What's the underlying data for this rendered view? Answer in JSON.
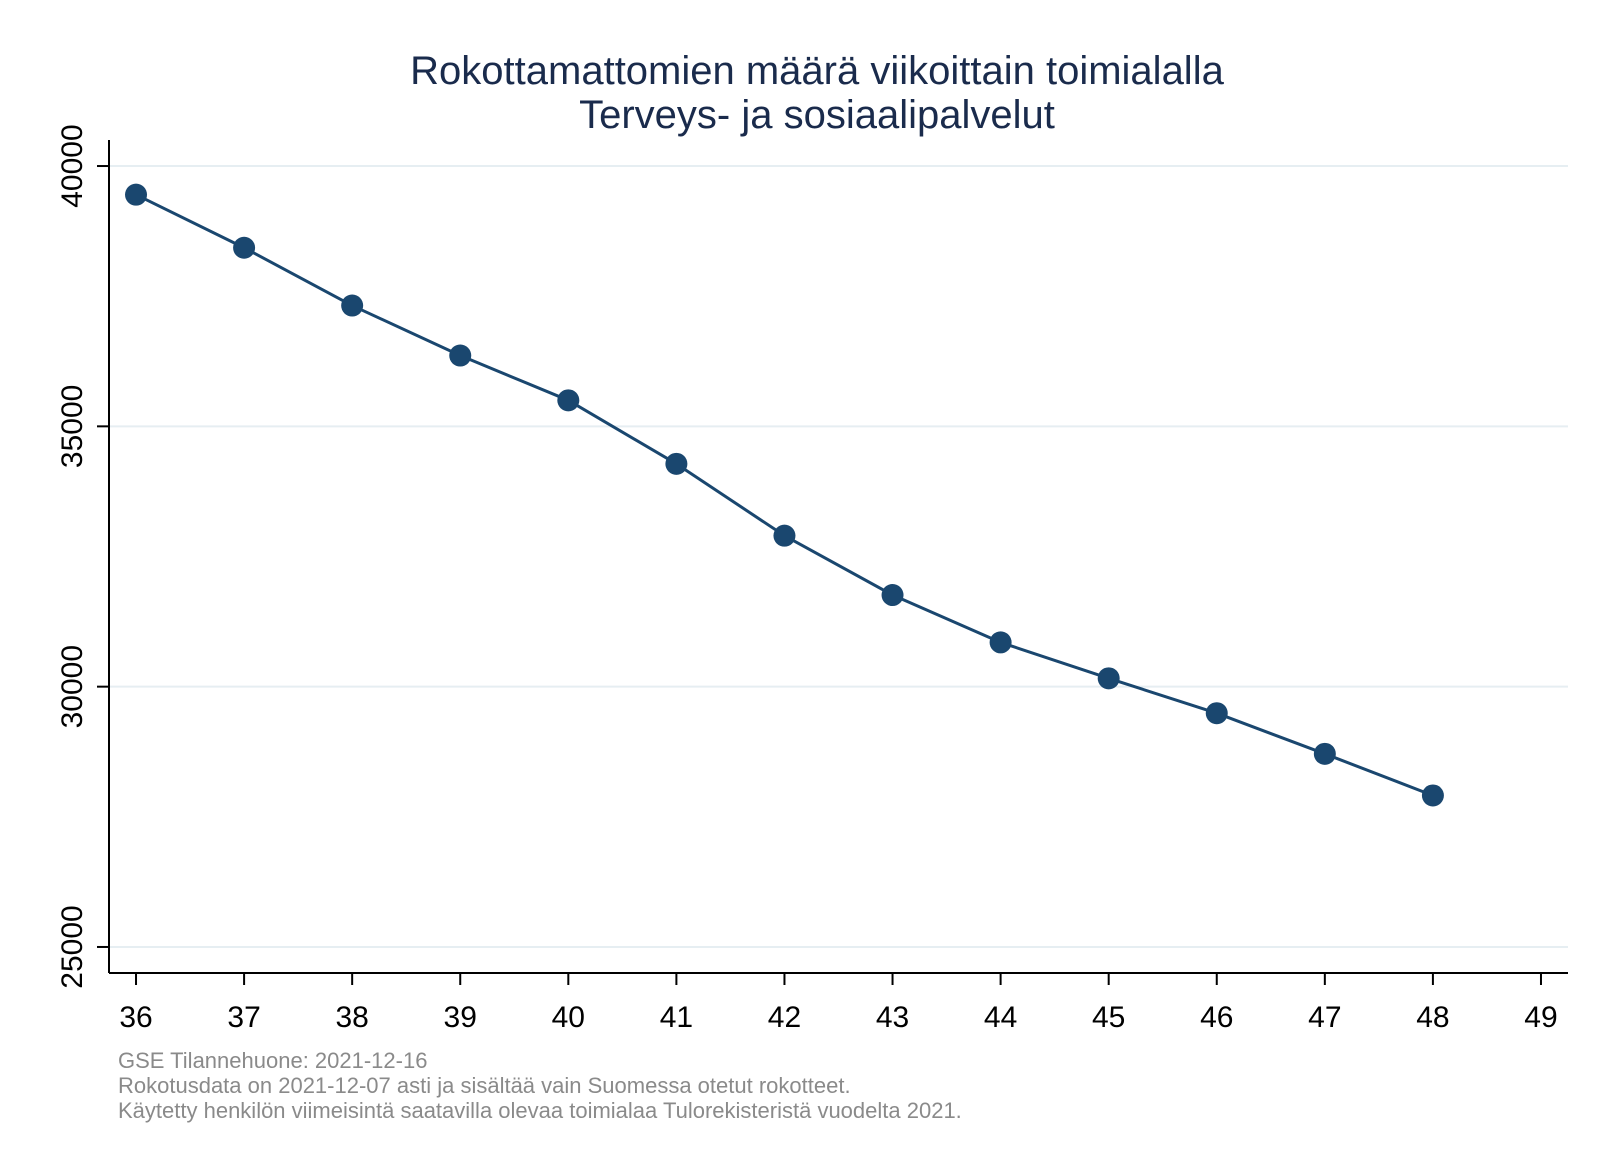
{
  "chart_data": {
    "type": "line",
    "title": [
      "Rokottamattomien määrä viikoittain toimialalla",
      "Terveys- ja sosiaalipalvelut"
    ],
    "xlabel": "",
    "ylabel": "",
    "x": [
      36,
      37,
      38,
      39,
      40,
      41,
      42,
      43,
      44,
      45,
      46,
      47,
      48
    ],
    "series": [
      {
        "values": [
          39450,
          38430,
          37320,
          36360,
          35500,
          34280,
          32900,
          31760,
          30850,
          30160,
          29490,
          28710,
          27910
        ]
      }
    ],
    "xticks": [
      36,
      37,
      38,
      39,
      40,
      41,
      42,
      43,
      44,
      45,
      46,
      47,
      48,
      49
    ],
    "yticks": [
      25000,
      30000,
      35000,
      40000
    ],
    "xlim": [
      35.75,
      49.25
    ],
    "ylim": [
      24500,
      40500
    ],
    "grid": "horizontal",
    "notes": [
      "GSE Tilannehuone: 2021-12-16",
      "Rokotusdata on 2021-12-07 asti ja sisältää vain Suomessa otetut rokotteet.",
      "Käytetty henkilön viimeisintä saatavilla olevaa toimialaa Tulorekisteristä vuodelta 2021."
    ],
    "colors": {
      "line": "#1a476f",
      "grid": "#e6eef2",
      "title": "#1a2b4c",
      "note": "#8a8a8a"
    }
  }
}
